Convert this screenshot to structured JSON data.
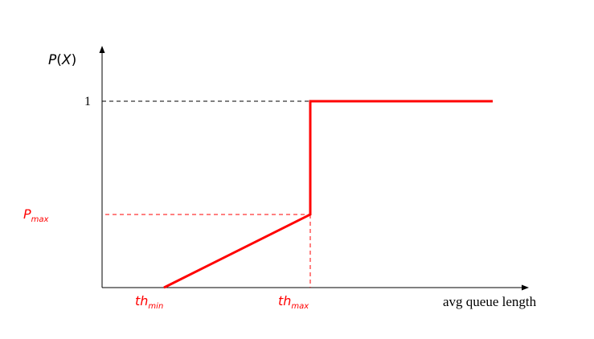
{
  "chart_data": {
    "type": "line",
    "title": "",
    "xlabel": "avg queue length",
    "ylabel": "P(X)",
    "ylabel_parts": {
      "main": "P",
      "open": "(",
      "var": "X",
      "close": ")"
    },
    "ytick_one": "1",
    "annotations": {
      "th_min": {
        "main": "th",
        "sub": "min"
      },
      "th_max": {
        "main": "th",
        "sub": "max"
      },
      "p_max": {
        "main": "P",
        "sub": "max"
      }
    },
    "series": [
      {
        "points": [
          {
            "x": "th_min",
            "y": 0
          },
          {
            "x": "th_max",
            "y": "P_max"
          },
          {
            "x": "th_max",
            "y": 1
          },
          {
            "x": "beyond",
            "y": 1
          }
        ]
      }
    ],
    "grid": false,
    "legend": "none",
    "colors": {
      "curve": "#ff0000",
      "annotation": "#ff0000",
      "axis": "#000000"
    }
  }
}
